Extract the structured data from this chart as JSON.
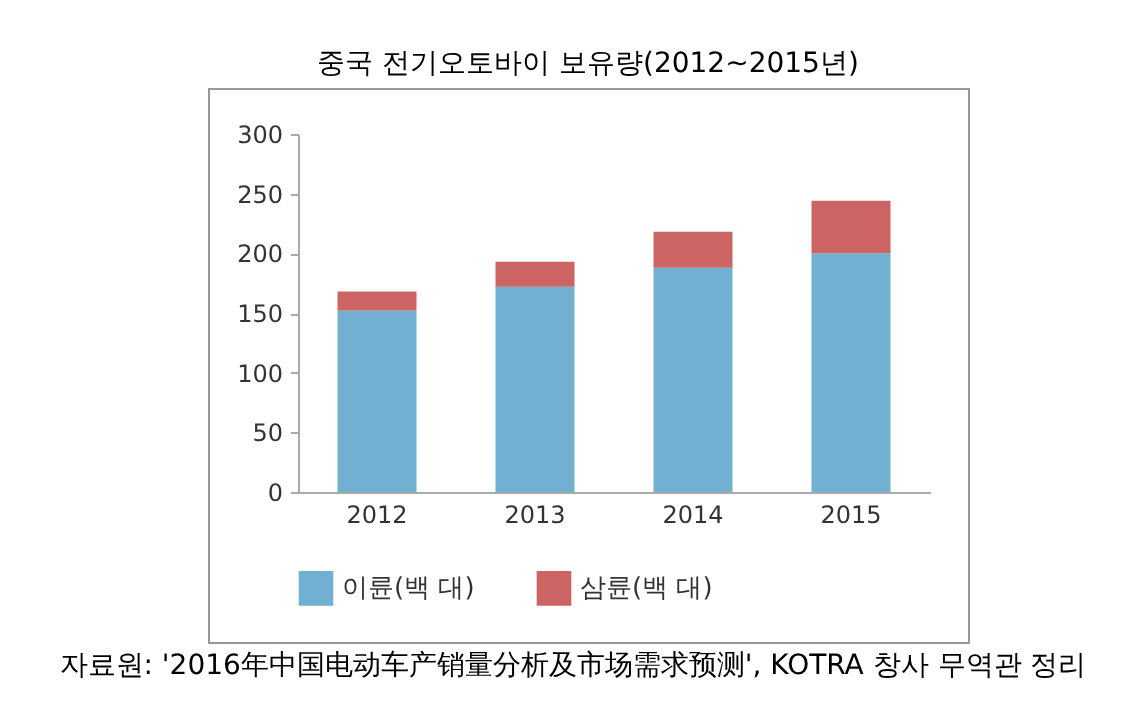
{
  "chart_data": {
    "type": "bar",
    "title": "중국 전기오토바이 보유량(2012~2015년)",
    "categories": [
      "2012",
      "2013",
      "2014",
      "2015"
    ],
    "stacked": true,
    "series": [
      {
        "name": "이륜(백 대)",
        "color": "#72b0d2",
        "values": [
          152,
          172,
          188,
          200
        ]
      },
      {
        "name": "삼륜(백 대)",
        "color": "#cd6464",
        "values": [
          16,
          21,
          30,
          44
        ]
      }
    ],
    "ylim": [
      0,
      300
    ],
    "yticks": [
      0,
      50,
      100,
      150,
      200,
      250,
      300
    ],
    "grid": false,
    "legend": "bottom",
    "annotations": [
      "자료원: '2016年中国电动车产销量分析及市场需求预测', KOTRA 창사 무역관 정리"
    ]
  }
}
